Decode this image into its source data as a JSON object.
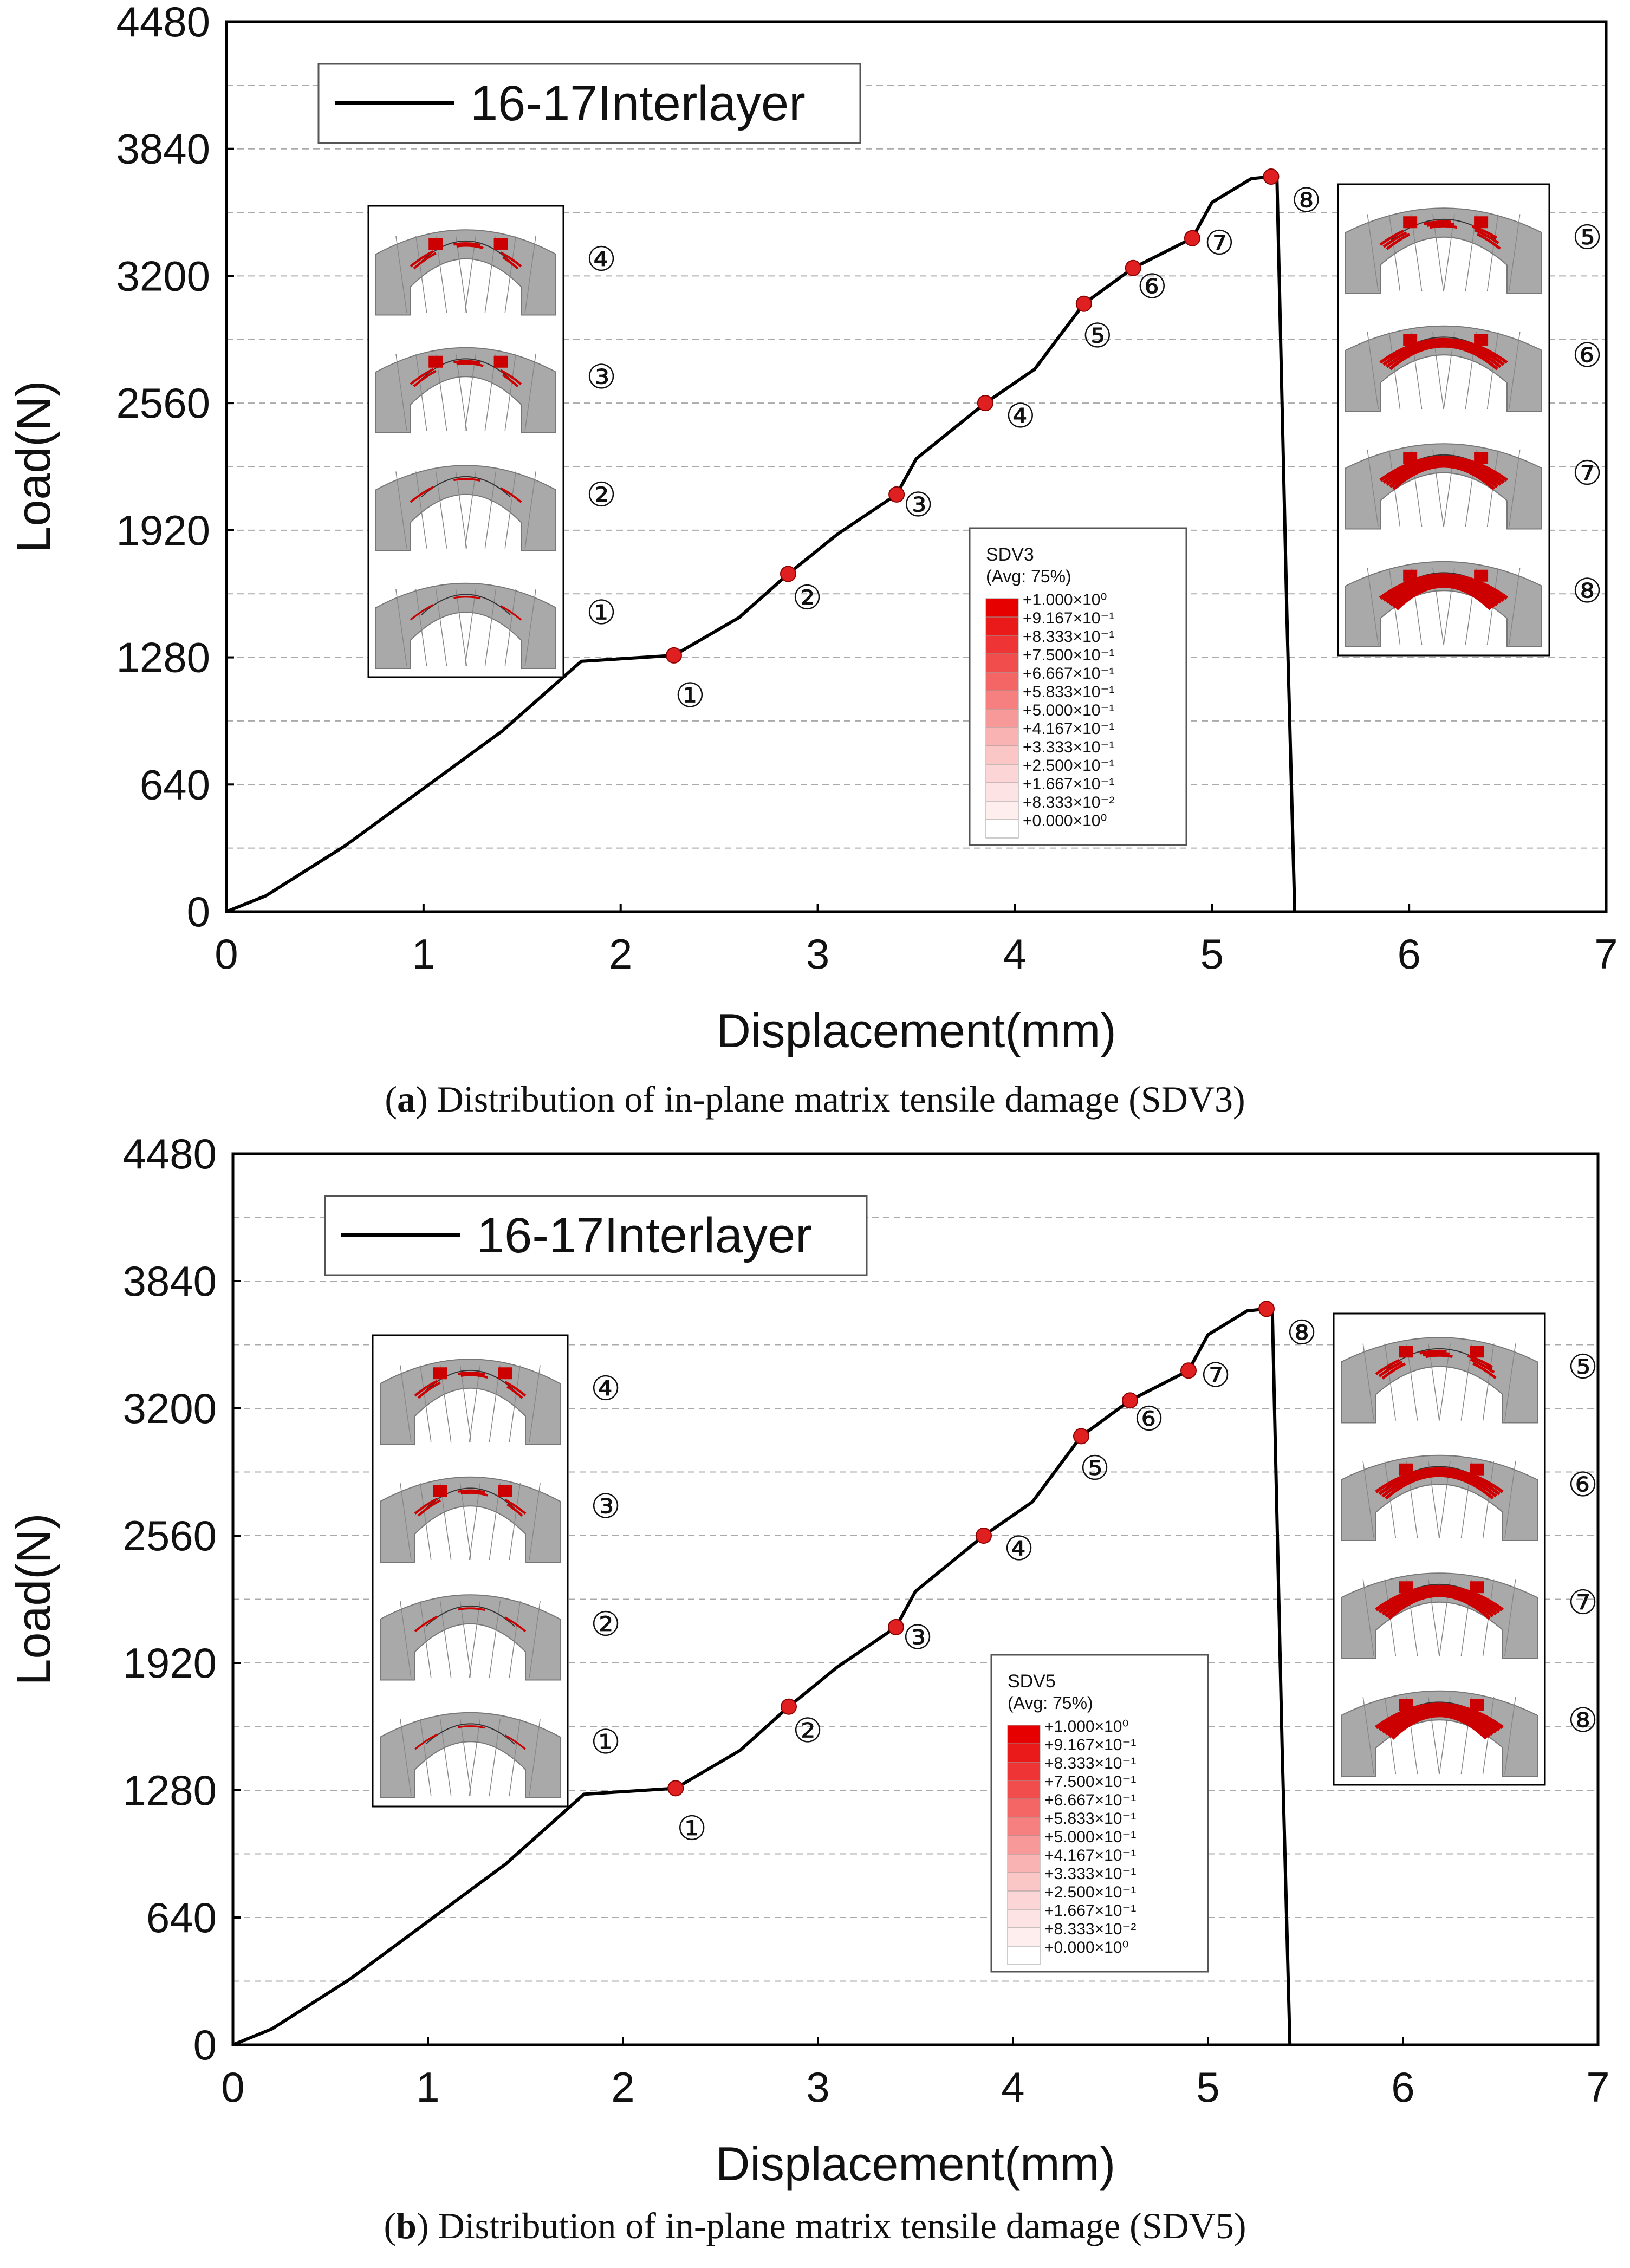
{
  "chart_data": [
    {
      "type": "line",
      "panel_label": "a",
      "caption": "Distribution of in-plane matrix tensile damage (SDV3)",
      "xlabel": "Displacement(mm)",
      "ylabel": "Load(N)",
      "xlim": [
        0,
        7
      ],
      "ylim": [
        0,
        4480
      ],
      "xticks": [
        "0",
        "1",
        "2",
        "3",
        "4",
        "5",
        "6",
        "7"
      ],
      "yticks": [
        "0",
        "640",
        "1280",
        "1920",
        "2560",
        "3200",
        "3840",
        "4480"
      ],
      "grid": "horizontal dashed",
      "legend": {
        "position": "top-left",
        "entries": [
          "16-17Interlayer"
        ]
      },
      "series": [
        {
          "name": "16-17Interlayer",
          "x": [
            0,
            0.2,
            0.6,
            1.0,
            1.4,
            1.8,
            2.27,
            2.6,
            2.85,
            3.1,
            3.4,
            3.5,
            3.85,
            4.1,
            4.35,
            4.6,
            4.9,
            5.0,
            5.2,
            5.3,
            5.33,
            5.38,
            5.42
          ],
          "y": [
            0,
            80,
            330,
            620,
            910,
            1260,
            1290,
            1480,
            1700,
            1900,
            2100,
            2280,
            2560,
            2730,
            3060,
            3240,
            3390,
            3570,
            3690,
            3700,
            3680,
            1500,
            0
          ]
        }
      ],
      "points": [
        {
          "label": "①",
          "x": 2.27,
          "y": 1290
        },
        {
          "label": "②",
          "x": 2.85,
          "y": 1700
        },
        {
          "label": "③",
          "x": 3.4,
          "y": 2100
        },
        {
          "label": "④",
          "x": 3.85,
          "y": 2560
        },
        {
          "label": "⑤",
          "x": 4.35,
          "y": 3060
        },
        {
          "label": "⑥",
          "x": 4.6,
          "y": 3240
        },
        {
          "label": "⑦",
          "x": 4.9,
          "y": 3390
        },
        {
          "label": "⑧",
          "x": 5.3,
          "y": 3700
        }
      ],
      "insets_left": [
        "④",
        "③",
        "②",
        "①"
      ],
      "insets_right": [
        "⑤",
        "⑥",
        "⑦",
        "⑧"
      ],
      "colorbar": {
        "title": "SDV3",
        "subtitle": "(Avg: 75%)",
        "labels": [
          "+1.000×10⁰",
          "+9.167×10⁻¹",
          "+8.333×10⁻¹",
          "+7.500×10⁻¹",
          "+6.667×10⁻¹",
          "+5.833×10⁻¹",
          "+5.000×10⁻¹",
          "+4.167×10⁻¹",
          "+3.333×10⁻¹",
          "+2.500×10⁻¹",
          "+1.667×10⁻¹",
          "+8.333×10⁻²",
          "+0.000×10⁰"
        ],
        "colors": [
          "#e60000",
          "#ea1a1a",
          "#ee3434",
          "#f14d4d",
          "#f46666",
          "#f68080",
          "#f89999",
          "#fab3b3",
          "#fbc6c6",
          "#fcd6d6",
          "#fde3e3",
          "#feeeee",
          "#ffffff"
        ]
      },
      "line_color": "#000000",
      "point_color": "#e02020"
    },
    {
      "type": "line",
      "panel_label": "b",
      "caption": "Distribution of in-plane matrix tensile damage (SDV5)",
      "xlabel": "Displacement(mm)",
      "ylabel": "Load(N)",
      "xlim": [
        0,
        7
      ],
      "ylim": [
        0,
        4480
      ],
      "xticks": [
        "0",
        "1",
        "2",
        "3",
        "4",
        "5",
        "6",
        "7"
      ],
      "yticks": [
        "0",
        "640",
        "1280",
        "1920",
        "2560",
        "3200",
        "3840",
        "4480"
      ],
      "grid": "horizontal dashed",
      "legend": {
        "position": "top-left",
        "entries": [
          "16-17Interlayer"
        ]
      },
      "series": [
        {
          "name": "16-17Interlayer",
          "x": [
            0,
            0.2,
            0.6,
            1.0,
            1.4,
            1.8,
            2.27,
            2.6,
            2.85,
            3.1,
            3.4,
            3.5,
            3.85,
            4.1,
            4.35,
            4.6,
            4.9,
            5.0,
            5.2,
            5.3,
            5.33,
            5.38,
            5.42
          ],
          "y": [
            0,
            80,
            330,
            620,
            910,
            1260,
            1290,
            1480,
            1700,
            1900,
            2100,
            2280,
            2560,
            2730,
            3060,
            3240,
            3390,
            3570,
            3690,
            3700,
            3680,
            1500,
            0
          ]
        }
      ],
      "points": [
        {
          "label": "①",
          "x": 2.27,
          "y": 1290
        },
        {
          "label": "②",
          "x": 2.85,
          "y": 1700
        },
        {
          "label": "③",
          "x": 3.4,
          "y": 2100
        },
        {
          "label": "④",
          "x": 3.85,
          "y": 2560
        },
        {
          "label": "⑤",
          "x": 4.35,
          "y": 3060
        },
        {
          "label": "⑥",
          "x": 4.6,
          "y": 3240
        },
        {
          "label": "⑦",
          "x": 4.9,
          "y": 3390
        },
        {
          "label": "⑧",
          "x": 5.3,
          "y": 3700
        }
      ],
      "insets_left": [
        "④",
        "③",
        "②",
        "①"
      ],
      "insets_right": [
        "⑤",
        "⑥",
        "⑦",
        "⑧"
      ],
      "colorbar": {
        "title": "SDV5",
        "subtitle": "(Avg: 75%)",
        "labels": [
          "+1.000×10⁰",
          "+9.167×10⁻¹",
          "+8.333×10⁻¹",
          "+7.500×10⁻¹",
          "+6.667×10⁻¹",
          "+5.833×10⁻¹",
          "+5.000×10⁻¹",
          "+4.167×10⁻¹",
          "+3.333×10⁻¹",
          "+2.500×10⁻¹",
          "+1.667×10⁻¹",
          "+8.333×10⁻²",
          "+0.000×10⁰"
        ],
        "colors": [
          "#e60000",
          "#ea1a1a",
          "#ee3434",
          "#f14d4d",
          "#f46666",
          "#f68080",
          "#f89999",
          "#fab3b3",
          "#fbc6c6",
          "#fcd6d6",
          "#fde3e3",
          "#feeeee",
          "#ffffff"
        ]
      },
      "line_color": "#000000",
      "point_color": "#e02020"
    }
  ]
}
